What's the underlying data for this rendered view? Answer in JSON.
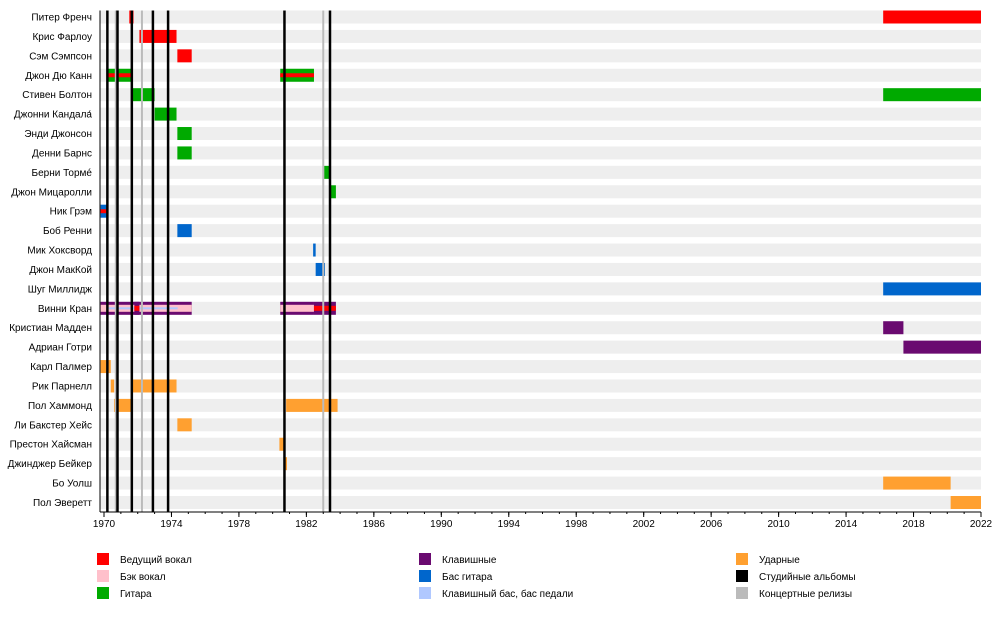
{
  "chart_data": {
    "type": "timeline",
    "title": "",
    "xlim": [
      1970,
      2022
    ],
    "x_ticks": [
      1970,
      1974,
      1978,
      1982,
      1986,
      1990,
      1994,
      1998,
      2002,
      2006,
      2010,
      2014,
      2018,
      2022
    ],
    "roles": {
      "lead_vocal": {
        "label": "Ведущий вокал",
        "color": "#ff0000"
      },
      "backing_vocal": {
        "label": "Бэк вокал",
        "color": "#ffc0cb"
      },
      "guitar": {
        "label": "Гитара",
        "color": "#00aa00"
      },
      "keyboards": {
        "label": "Клавишные",
        "color": "#6a0a70"
      },
      "bass": {
        "label": "Бас гитара",
        "color": "#0066cc"
      },
      "keyboard_bass": {
        "label": "Клавишный бас, бас педали",
        "color": "#b0c8ff"
      },
      "drums": {
        "label": "Ударные",
        "color": "#ffa030"
      },
      "studio_albums": {
        "label": "Студийные альбомы",
        "color": "#000000"
      },
      "live_releases": {
        "label": "Концертные релизы",
        "color": "#bbbbbb"
      }
    },
    "legend": [
      [
        "lead_vocal",
        "backing_vocal",
        "guitar"
      ],
      [
        "keyboards",
        "bass",
        "keyboard_bass"
      ],
      [
        "drums",
        "studio_albums",
        "live_releases"
      ]
    ],
    "studio_albums": [
      1970.2,
      1970.8,
      1971.65,
      1972.9,
      1973.8,
      1980.7,
      1983.4
    ],
    "live_releases": [
      1970.7,
      1972.25,
      1983.0
    ],
    "members": [
      {
        "name": "Питер Френч",
        "bars": [
          {
            "start": 1971.5,
            "end": 1971.75,
            "roles": [
              "lead_vocal"
            ]
          },
          {
            "start": 2016.2,
            "end": 2022,
            "roles": [
              "lead_vocal"
            ]
          }
        ]
      },
      {
        "name": "Крис Фарлоу",
        "bars": [
          {
            "start": 1972.1,
            "end": 1974.3,
            "roles": [
              "lead_vocal"
            ]
          }
        ]
      },
      {
        "name": "Сэм Сэмпсон",
        "bars": [
          {
            "start": 1974.35,
            "end": 1975.2,
            "roles": [
              "lead_vocal"
            ]
          }
        ]
      },
      {
        "name": "Джон Дю Канн",
        "bars": [
          {
            "start": 1970.25,
            "end": 1971.6,
            "roles": [
              "guitar",
              "lead_vocal"
            ]
          },
          {
            "start": 1980.45,
            "end": 1982.45,
            "roles": [
              "guitar",
              "lead_vocal"
            ]
          }
        ]
      },
      {
        "name": "Стивен Болтон",
        "bars": [
          {
            "start": 1971.6,
            "end": 1973.0,
            "roles": [
              "guitar"
            ]
          },
          {
            "start": 2016.2,
            "end": 2022,
            "roles": [
              "guitar"
            ]
          }
        ]
      },
      {
        "name": "Джонни Кандала́",
        "bars": [
          {
            "start": 1973.0,
            "end": 1974.3,
            "roles": [
              "guitar"
            ]
          }
        ]
      },
      {
        "name": "Энди Джонсон",
        "bars": [
          {
            "start": 1974.35,
            "end": 1975.2,
            "roles": [
              "guitar"
            ]
          }
        ]
      },
      {
        "name": "Денни Барнс",
        "bars": [
          {
            "start": 1974.35,
            "end": 1975.2,
            "roles": [
              "guitar"
            ]
          }
        ]
      },
      {
        "name": "Берни Тормé",
        "bars": [
          {
            "start": 1983.05,
            "end": 1983.45,
            "roles": [
              "guitar"
            ]
          }
        ]
      },
      {
        "name": "Джон Мицаролли",
        "bars": [
          {
            "start": 1983.4,
            "end": 1983.75,
            "roles": [
              "guitar"
            ]
          }
        ]
      },
      {
        "name": "Ник Грэм",
        "bars": [
          {
            "start": 1969.8,
            "end": 1970.25,
            "roles": [
              "bass",
              "lead_vocal"
            ]
          }
        ]
      },
      {
        "name": "Боб Ренни",
        "bars": [
          {
            "start": 1974.35,
            "end": 1975.2,
            "roles": [
              "bass"
            ]
          }
        ]
      },
      {
        "name": "Мик Хоксворд",
        "bars": [
          {
            "start": 1982.4,
            "end": 1982.55,
            "roles": [
              "bass"
            ]
          }
        ]
      },
      {
        "name": "Джон МакКой",
        "bars": [
          {
            "start": 1982.55,
            "end": 1983.1,
            "roles": [
              "bass"
            ]
          }
        ]
      },
      {
        "name": "Шуг Миллидж",
        "bars": [
          {
            "start": 2016.2,
            "end": 2022,
            "roles": [
              "bass"
            ]
          }
        ]
      },
      {
        "name": "Винни Кран",
        "bars": [
          {
            "start": 1969.8,
            "end": 1975.2,
            "roles": [
              "keyboards",
              "backing_vocal",
              "keyboard_bass"
            ]
          },
          {
            "start": 1971.8,
            "end": 1972.1,
            "roles": [
              "keyboards",
              "lead_vocal"
            ]
          },
          {
            "start": 1980.45,
            "end": 1982.45,
            "roles": [
              "keyboards",
              "backing_vocal"
            ]
          },
          {
            "start": 1982.45,
            "end": 1983.75,
            "roles": [
              "keyboards",
              "lead_vocal"
            ]
          }
        ]
      },
      {
        "name": "Кристиан Мадден",
        "bars": [
          {
            "start": 2016.2,
            "end": 2017.4,
            "roles": [
              "keyboards"
            ]
          }
        ]
      },
      {
        "name": "Адриан Готри",
        "bars": [
          {
            "start": 2017.4,
            "end": 2022,
            "roles": [
              "keyboards"
            ]
          }
        ]
      },
      {
        "name": "Карл Палмер",
        "bars": [
          {
            "start": 1969.8,
            "end": 1970.4,
            "roles": [
              "drums"
            ]
          }
        ]
      },
      {
        "name": "Рик Парнелл",
        "bars": [
          {
            "start": 1970.4,
            "end": 1970.6,
            "roles": [
              "drums"
            ]
          },
          {
            "start": 1971.6,
            "end": 1974.3,
            "roles": [
              "drums"
            ]
          }
        ]
      },
      {
        "name": "Пол Хаммонд",
        "bars": [
          {
            "start": 1970.6,
            "end": 1971.65,
            "roles": [
              "drums"
            ]
          },
          {
            "start": 1980.8,
            "end": 1983.85,
            "roles": [
              "drums"
            ]
          }
        ]
      },
      {
        "name": "Ли Бакстер Хейс",
        "bars": [
          {
            "start": 1974.35,
            "end": 1975.2,
            "roles": [
              "drums"
            ]
          }
        ]
      },
      {
        "name": "Престон Хайсман",
        "bars": [
          {
            "start": 1980.4,
            "end": 1980.7,
            "roles": [
              "drums"
            ]
          }
        ]
      },
      {
        "name": "Джинджер Бейкер",
        "bars": [
          {
            "start": 1980.7,
            "end": 1980.85,
            "roles": [
              "drums"
            ]
          }
        ]
      },
      {
        "name": "Бо Уолш",
        "bars": [
          {
            "start": 2016.2,
            "end": 2020.2,
            "roles": [
              "drums"
            ]
          }
        ]
      },
      {
        "name": "Пол Эверетт",
        "bars": [
          {
            "start": 2020.2,
            "end": 2022,
            "roles": [
              "drums"
            ]
          }
        ]
      }
    ]
  }
}
